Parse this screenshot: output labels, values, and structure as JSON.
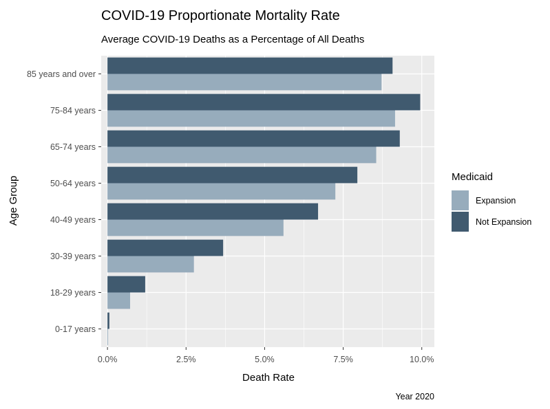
{
  "chart_data": {
    "type": "bar",
    "orientation": "horizontal",
    "title": "COVID-19 Proportionate Mortality Rate",
    "subtitle": "Average COVID-19 Deaths as a Percentage of All Deaths",
    "xlabel": "Death Rate",
    "ylabel": "Age Group",
    "caption": "Year 2020",
    "categories": [
      "0-17 years",
      "18-29 years",
      "30-39 years",
      "40-49 years",
      "50-64 years",
      "65-74 years",
      "75-84 years",
      "85 years and over"
    ],
    "series": [
      {
        "name": "Expansion",
        "color": "#97acbc",
        "values": [
          0.02,
          0.72,
          2.75,
          5.6,
          7.25,
          8.55,
          9.15,
          8.72
        ]
      },
      {
        "name": "Not Expansion",
        "color": "#405a6f",
        "values": [
          0.06,
          1.2,
          3.68,
          6.7,
          7.95,
          9.3,
          9.95,
          9.07
        ]
      }
    ],
    "xlim": [
      -0.2,
      10.4
    ],
    "xticks": [
      {
        "value": 0,
        "label": "0.0%"
      },
      {
        "value": 2.5,
        "label": "2.5%"
      },
      {
        "value": 5,
        "label": "5.0%"
      },
      {
        "value": 7.5,
        "label": "7.5%"
      },
      {
        "value": 10,
        "label": "10.0%"
      }
    ],
    "legend": {
      "title": "Medicaid",
      "position": "right"
    },
    "grid": true,
    "panel_background": "#ebebeb",
    "grid_color": "#ffffff"
  }
}
